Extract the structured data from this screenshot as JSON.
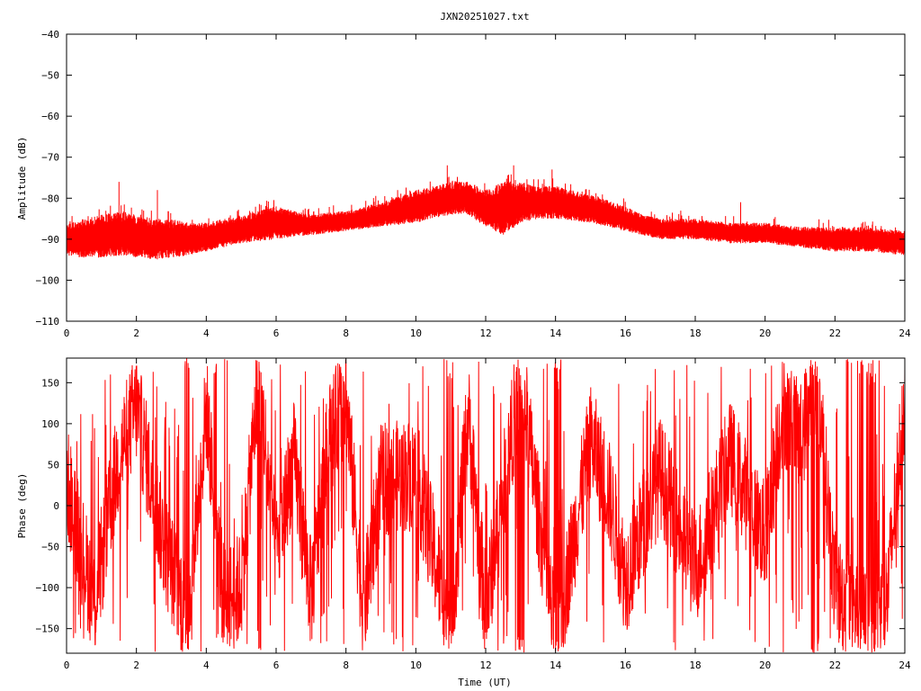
{
  "chart_data": [
    {
      "type": "line",
      "title": "JXN20251027.txt",
      "xlabel": "",
      "ylabel": "Amplitude (dB)",
      "xlim": [
        0,
        24
      ],
      "ylim": [
        -110,
        -40
      ],
      "xticks": [
        0,
        2,
        4,
        6,
        8,
        10,
        12,
        14,
        16,
        18,
        20,
        22,
        24
      ],
      "yticks": [
        -110,
        -100,
        -90,
        -80,
        -70,
        -60,
        -50,
        -40
      ],
      "color": "#ff0000",
      "grid": false,
      "series": [
        {
          "envelope": {
            "x": [
              0,
              0.5,
              1,
              1.5,
              2,
              2.5,
              3,
              3.5,
              4,
              5,
              6,
              7,
              8,
              9,
              10,
              10.5,
              11,
              11.5,
              12,
              12.5,
              13,
              13.5,
              14,
              15,
              16,
              16.5,
              17,
              18,
              19,
              20,
              21,
              22,
              23,
              24
            ],
            "lower": [
              -94,
              -94.5,
              -94.5,
              -94,
              -94.5,
              -95,
              -94.5,
              -94,
              -93,
              -91,
              -90,
              -89,
              -88,
              -87,
              -86,
              -85,
              -84,
              -84,
              -87,
              -89,
              -86,
              -85,
              -85,
              -86,
              -88,
              -89,
              -90,
              -90,
              -91,
              -91,
              -92,
              -93,
              -93,
              -94
            ],
            "upper": [
              -86,
              -85,
              -84,
              -83,
              -84,
              -85,
              -85,
              -86,
              -86,
              -84,
              -82,
              -84,
              -83,
              -81,
              -78,
              -77,
              -76,
              -76,
              -78,
              -76,
              -76,
              -77,
              -77,
              -79,
              -82,
              -84,
              -85,
              -85,
              -86,
              -86,
              -87,
              -87,
              -87,
              -88
            ],
            "spikes_max": [
              [
                1.5,
                -76
              ],
              [
                2.6,
                -78
              ],
              [
                10.9,
                -72
              ],
              [
                12.8,
                -72
              ],
              [
                13.9,
                -73
              ],
              [
                19.3,
                -81
              ]
            ]
          }
        }
      ]
    },
    {
      "type": "line",
      "title": "",
      "xlabel": "Time (UT)",
      "ylabel": "Phase (deg)",
      "xlim": [
        0,
        24
      ],
      "ylim": [
        -180,
        180
      ],
      "xticks": [
        0,
        2,
        4,
        6,
        8,
        10,
        12,
        14,
        16,
        18,
        20,
        22,
        24
      ],
      "yticks": [
        -150,
        -100,
        -50,
        0,
        50,
        100,
        150
      ],
      "color": "#ff0000",
      "grid": false,
      "series": [
        {
          "wrap_range": [
            -180,
            180
          ],
          "trend": {
            "x": [
              0,
              0.8,
              1.5,
              2,
              2.8,
              3.5,
              4,
              4.5,
              5,
              5.5,
              6,
              6.5,
              7,
              7.5,
              8,
              8.5,
              9,
              10,
              11,
              11.5,
              12,
              13,
              14,
              15,
              15.5,
              16,
              17,
              18,
              19,
              20,
              20.5,
              21,
              21.5,
              22,
              23,
              23.5,
              24
            ],
            "y": [
              30,
              -120,
              60,
              120,
              -50,
              -140,
              120,
              -120,
              -100,
              160,
              -60,
              60,
              -110,
              80,
              130,
              -130,
              30,
              40,
              -150,
              110,
              -130,
              160,
              -170,
              80,
              20,
              -90,
              40,
              -80,
              60,
              -40,
              120,
              80,
              160,
              -100,
              -150,
              -110,
              140
            ]
          }
        }
      ]
    }
  ]
}
